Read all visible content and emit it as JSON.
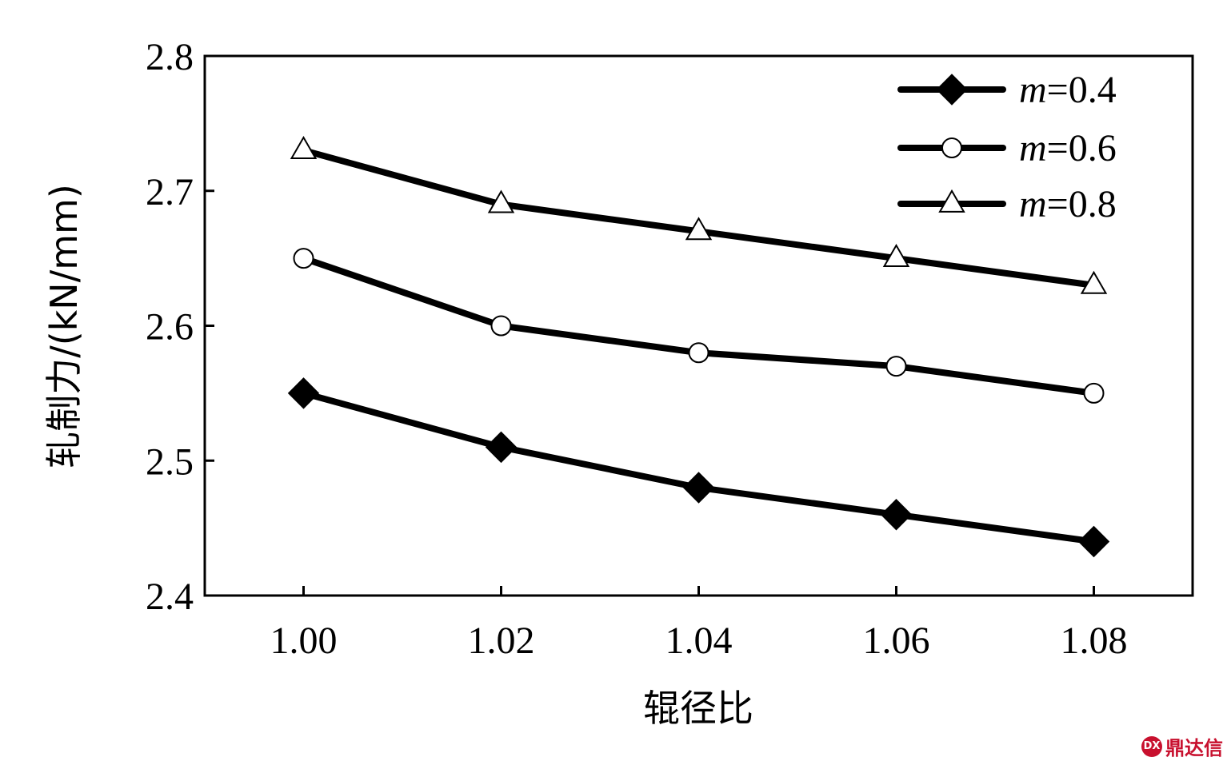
{
  "chart_data": {
    "type": "line",
    "xlabel": "辊径比",
    "ylabel": "轧制力/(kN/mm)",
    "x": [
      1.0,
      1.02,
      1.04,
      1.06,
      1.08
    ],
    "x_tick_labels": [
      "1.00",
      "1.02",
      "1.04",
      "1.06",
      "1.08"
    ],
    "xlim": [
      0.99,
      1.09
    ],
    "ylim": [
      2.4,
      2.8
    ],
    "y_ticks": [
      2.4,
      2.5,
      2.6,
      2.7,
      2.8
    ],
    "y_tick_labels": [
      "2.4",
      "2.5",
      "2.6",
      "2.7",
      "2.8"
    ],
    "legend_position": "top-right",
    "grid": false,
    "series": [
      {
        "name": "m=0.4",
        "name_var": "m",
        "name_value": "=0.4",
        "marker": "diamond-filled",
        "values": [
          2.55,
          2.51,
          2.48,
          2.46,
          2.44
        ]
      },
      {
        "name": "m=0.6",
        "name_var": "m",
        "name_value": "=0.6",
        "marker": "circle-open",
        "values": [
          2.65,
          2.6,
          2.58,
          2.57,
          2.55
        ]
      },
      {
        "name": "m=0.8",
        "name_var": "m",
        "name_value": "=0.8",
        "marker": "triangle-open",
        "values": [
          2.73,
          2.69,
          2.67,
          2.65,
          2.63
        ]
      }
    ]
  },
  "watermark": {
    "icon_text": "DX",
    "text": "鼎达信"
  },
  "colors": {
    "line": "#000000",
    "watermark": "#c8102e"
  }
}
